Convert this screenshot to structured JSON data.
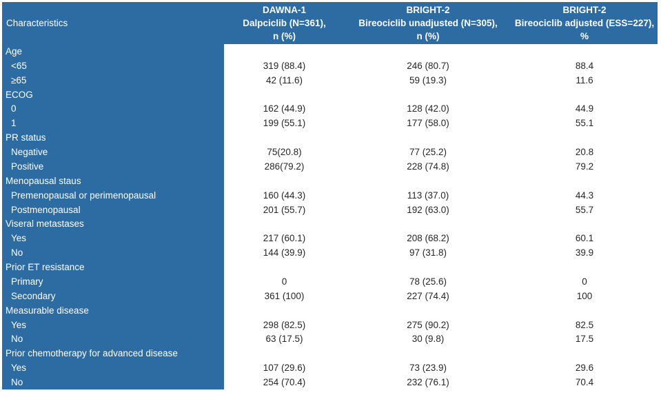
{
  "colors": {
    "panel_blue": "#2d6ba3",
    "header_text": "#ffffff",
    "label_text": "#ffffff",
    "value_text": "#262626",
    "page_bg": "#ffffff"
  },
  "table": {
    "columns": [
      {
        "header_lines": [
          "Characteristics"
        ]
      },
      {
        "header_lines": [
          "DAWNA-1",
          "Dalpciclib (N=361),",
          "n (%)"
        ]
      },
      {
        "header_lines": [
          "BRIGHT-2",
          "Bireociclib unadjusted (N=305),",
          "n (%)"
        ]
      },
      {
        "header_lines": [
          "BRIGHT-2",
          "Bireociclib adjusted (ESS=227),",
          "%"
        ]
      }
    ],
    "rows": [
      {
        "label": "Age",
        "indent": false,
        "values": [
          "",
          "",
          ""
        ]
      },
      {
        "label": "<65",
        "indent": true,
        "values": [
          "319 (88.4)",
          "246 (80.7)",
          "88.4"
        ]
      },
      {
        "label": "≥65",
        "indent": true,
        "values": [
          "42 (11.6)",
          "59 (19.3)",
          "11.6"
        ]
      },
      {
        "label": "ECOG",
        "indent": false,
        "values": [
          "",
          "",
          ""
        ]
      },
      {
        "label": "0",
        "indent": true,
        "values": [
          "162 (44.9)",
          "128 (42.0)",
          "44.9"
        ]
      },
      {
        "label": "1",
        "indent": true,
        "values": [
          "199 (55.1)",
          "177 (58.0)",
          "55.1"
        ]
      },
      {
        "label": "PR status",
        "indent": false,
        "values": [
          "",
          "",
          ""
        ]
      },
      {
        "label": "Negative",
        "indent": true,
        "values": [
          "75(20.8)",
          "77 (25.2)",
          "20.8"
        ]
      },
      {
        "label": "Positive",
        "indent": true,
        "values": [
          "286(79.2)",
          "228 (74.8)",
          "79.2"
        ]
      },
      {
        "label": "Menopausal staus",
        "indent": false,
        "values": [
          "",
          "",
          ""
        ]
      },
      {
        "label": "Premenopausal or perimenopausal",
        "indent": true,
        "values": [
          "160 (44.3)",
          "113 (37.0)",
          "44.3"
        ]
      },
      {
        "label": "Postmenopausal",
        "indent": true,
        "values": [
          "201 (55.7)",
          "192 (63.0)",
          "55.7"
        ]
      },
      {
        "label": "Viseral metastases",
        "indent": false,
        "values": [
          "",
          "",
          ""
        ]
      },
      {
        "label": "Yes",
        "indent": true,
        "values": [
          "217 (60.1)",
          "208 (68.2)",
          "60.1"
        ]
      },
      {
        "label": "No",
        "indent": true,
        "values": [
          "144 (39.9)",
          "97 (31.8)",
          "39.9"
        ]
      },
      {
        "label": "Prior ET resistance",
        "indent": false,
        "values": [
          "",
          "",
          ""
        ]
      },
      {
        "label": "Primary",
        "indent": true,
        "values": [
          "0",
          "78 (25.6)",
          "0"
        ]
      },
      {
        "label": "Secondary",
        "indent": true,
        "values": [
          "361 (100)",
          "227 (74.4)",
          "100"
        ]
      },
      {
        "label": "Measurable disease",
        "indent": false,
        "values": [
          "",
          "",
          ""
        ]
      },
      {
        "label": "Yes",
        "indent": true,
        "values": [
          "298 (82.5)",
          "275 (90.2)",
          "82.5"
        ]
      },
      {
        "label": "No",
        "indent": true,
        "values": [
          "63 (17.5)",
          "30 (9.8)",
          "17.5"
        ]
      },
      {
        "label": "Prior chemotherapy for advanced disease",
        "indent": false,
        "values": [
          "",
          "",
          ""
        ]
      },
      {
        "label": "Yes",
        "indent": true,
        "values": [
          "107 (29.6)",
          "73 (23.9)",
          "29.6"
        ]
      },
      {
        "label": "No",
        "indent": true,
        "values": [
          "254 (70.4)",
          "232 (76.1)",
          "70.4"
        ]
      }
    ]
  }
}
